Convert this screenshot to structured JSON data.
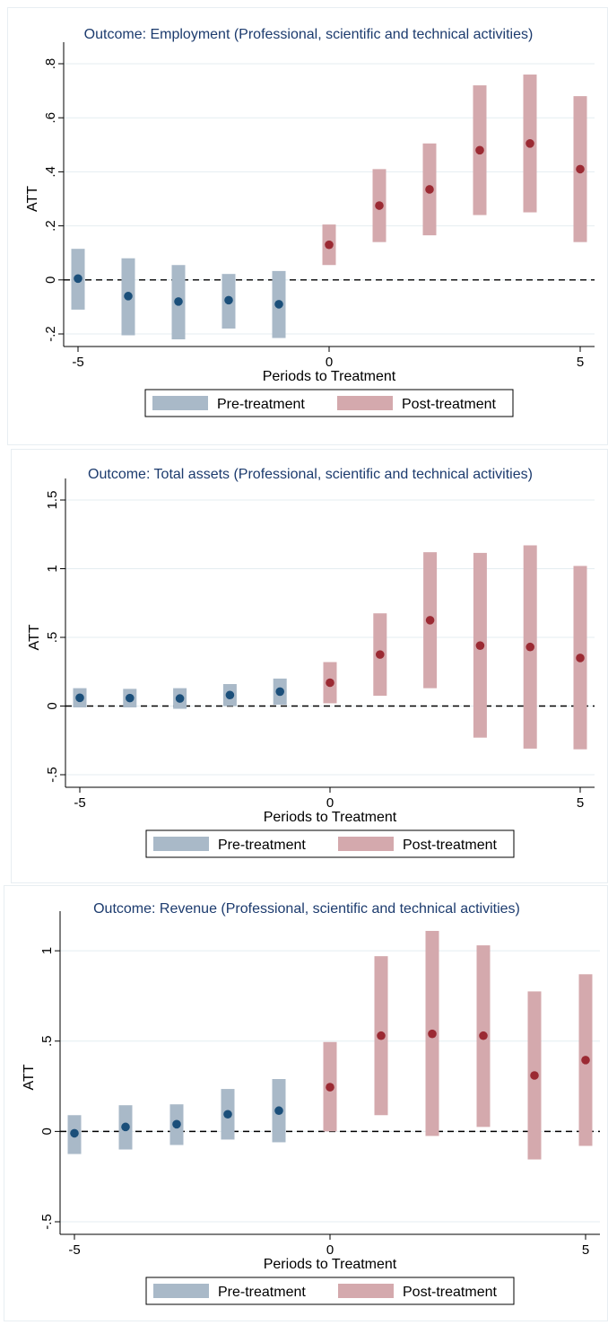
{
  "colors": {
    "pre_bar": "#a9b9c8",
    "post_bar": "#d4a9ad",
    "pre_point": "#1b4f7a",
    "post_point": "#9b2a33",
    "grid": "#e4edf1",
    "title": "#1c3b6e"
  },
  "chart_data": [
    {
      "type": "scatter",
      "title": "Outcome: Employment (Professional, scientific and technical activities)",
      "xlabel": "Periods to Treatment",
      "ylabel": "ATT",
      "xlim": [
        -5,
        5
      ],
      "ylim": [
        -0.2,
        0.8
      ],
      "xticks": [
        -5,
        0,
        5
      ],
      "xtick_labels": [
        "-5",
        "0",
        "5"
      ],
      "yticks": [
        -0.2,
        0,
        0.2,
        0.4,
        0.6,
        0.8
      ],
      "ytick_labels": [
        "-.2",
        "0",
        ".2",
        ".4",
        ".6",
        ".8"
      ],
      "grid": true,
      "reference_line": 0,
      "legend": [
        "Pre-treatment",
        "Post-treatment"
      ],
      "legend_position": "bottom",
      "points": [
        {
          "x": -5,
          "y": 0.005,
          "lo": -0.11,
          "hi": 0.115,
          "group": "pre"
        },
        {
          "x": -4,
          "y": -0.06,
          "lo": -0.205,
          "hi": 0.08,
          "group": "pre"
        },
        {
          "x": -3,
          "y": -0.08,
          "lo": -0.22,
          "hi": 0.055,
          "group": "pre"
        },
        {
          "x": -2,
          "y": -0.075,
          "lo": -0.18,
          "hi": 0.022,
          "group": "pre"
        },
        {
          "x": -1,
          "y": -0.09,
          "lo": -0.215,
          "hi": 0.033,
          "group": "pre"
        },
        {
          "x": 0,
          "y": 0.13,
          "lo": 0.055,
          "hi": 0.205,
          "group": "post"
        },
        {
          "x": 1,
          "y": 0.275,
          "lo": 0.14,
          "hi": 0.41,
          "group": "post"
        },
        {
          "x": 2,
          "y": 0.335,
          "lo": 0.165,
          "hi": 0.505,
          "group": "post"
        },
        {
          "x": 3,
          "y": 0.48,
          "lo": 0.24,
          "hi": 0.72,
          "group": "post"
        },
        {
          "x": 4,
          "y": 0.505,
          "lo": 0.25,
          "hi": 0.76,
          "group": "post"
        },
        {
          "x": 5,
          "y": 0.41,
          "lo": 0.14,
          "hi": 0.68,
          "group": "post"
        }
      ]
    },
    {
      "type": "scatter",
      "title": "Outcome: Total assets (Professional, scientific and technical activities)",
      "xlabel": "Periods to Treatment",
      "ylabel": "ATT",
      "xlim": [
        -5,
        5
      ],
      "ylim": [
        -0.5,
        1.5
      ],
      "xticks": [
        -5,
        0,
        5
      ],
      "xtick_labels": [
        "-5",
        "0",
        "5"
      ],
      "yticks": [
        -0.5,
        0,
        0.5,
        1,
        1.5
      ],
      "ytick_labels": [
        "-.5",
        "0",
        ".5",
        "1",
        "1.5"
      ],
      "grid": true,
      "reference_line": 0,
      "legend": [
        "Pre-treatment",
        "Post-treatment"
      ],
      "legend_position": "bottom",
      "points": [
        {
          "x": -5,
          "y": 0.06,
          "lo": -0.01,
          "hi": 0.13,
          "group": "pre"
        },
        {
          "x": -4,
          "y": 0.058,
          "lo": -0.01,
          "hi": 0.125,
          "group": "pre"
        },
        {
          "x": -3,
          "y": 0.055,
          "lo": -0.02,
          "hi": 0.13,
          "group": "pre"
        },
        {
          "x": -2,
          "y": 0.08,
          "lo": 0.0,
          "hi": 0.16,
          "group": "pre"
        },
        {
          "x": -1,
          "y": 0.105,
          "lo": 0.01,
          "hi": 0.2,
          "group": "pre"
        },
        {
          "x": 0,
          "y": 0.17,
          "lo": 0.02,
          "hi": 0.32,
          "group": "post"
        },
        {
          "x": 1,
          "y": 0.375,
          "lo": 0.075,
          "hi": 0.675,
          "group": "post"
        },
        {
          "x": 2,
          "y": 0.625,
          "lo": 0.13,
          "hi": 1.12,
          "group": "post"
        },
        {
          "x": 3,
          "y": 0.44,
          "lo": -0.23,
          "hi": 1.115,
          "group": "post"
        },
        {
          "x": 4,
          "y": 0.43,
          "lo": -0.31,
          "hi": 1.17,
          "group": "post"
        },
        {
          "x": 5,
          "y": 0.35,
          "lo": -0.315,
          "hi": 1.02,
          "group": "post"
        }
      ]
    },
    {
      "type": "scatter",
      "title": "Outcome: Revenue (Professional, scientific and technical activities)",
      "xlabel": "Periods to Treatment",
      "ylabel": "ATT",
      "xlim": [
        -5,
        5
      ],
      "ylim": [
        -0.5,
        1.1
      ],
      "xticks": [
        -5,
        0,
        5
      ],
      "xtick_labels": [
        "-5",
        "0",
        "5"
      ],
      "yticks": [
        -0.5,
        0,
        0.5,
        1
      ],
      "ytick_labels": [
        "-.5",
        "0",
        ".5",
        "1"
      ],
      "grid": true,
      "reference_line": 0,
      "legend": [
        "Pre-treatment",
        "Post-treatment"
      ],
      "legend_position": "bottom",
      "points": [
        {
          "x": -5,
          "y": -0.01,
          "lo": -0.125,
          "hi": 0.09,
          "group": "pre"
        },
        {
          "x": -4,
          "y": 0.025,
          "lo": -0.1,
          "hi": 0.145,
          "group": "pre"
        },
        {
          "x": -3,
          "y": 0.04,
          "lo": -0.075,
          "hi": 0.15,
          "group": "pre"
        },
        {
          "x": -2,
          "y": 0.095,
          "lo": -0.045,
          "hi": 0.235,
          "group": "pre"
        },
        {
          "x": -1,
          "y": 0.115,
          "lo": -0.06,
          "hi": 0.29,
          "group": "pre"
        },
        {
          "x": 0,
          "y": 0.245,
          "lo": 0.0,
          "hi": 0.495,
          "group": "post"
        },
        {
          "x": 1,
          "y": 0.53,
          "lo": 0.09,
          "hi": 0.97,
          "group": "post"
        },
        {
          "x": 2,
          "y": 0.54,
          "lo": -0.025,
          "hi": 1.11,
          "group": "post"
        },
        {
          "x": 3,
          "y": 0.53,
          "lo": 0.025,
          "hi": 1.03,
          "group": "post"
        },
        {
          "x": 4,
          "y": 0.31,
          "lo": -0.155,
          "hi": 0.775,
          "group": "post"
        },
        {
          "x": 5,
          "y": 0.395,
          "lo": -0.08,
          "hi": 0.87,
          "group": "post"
        }
      ]
    }
  ]
}
